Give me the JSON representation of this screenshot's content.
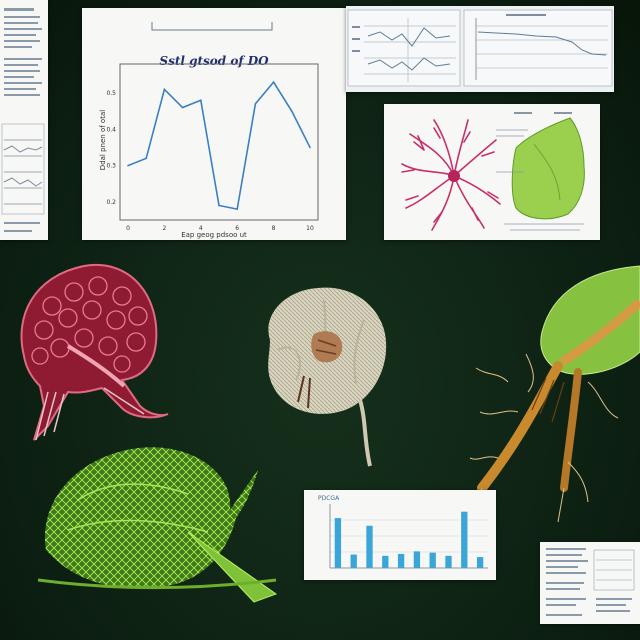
{
  "colors": {
    "background": "#0f2415",
    "line": "#3b7fc4",
    "bar": "#3aa5d8",
    "fern": "#8fd63a",
    "crimson": "#b0243e",
    "pink": "#d4376e",
    "leaf": "#9bd04e",
    "amber": "#c98a2e"
  },
  "main_plot": {
    "title": "Sstl gtsod of DO",
    "ylabel": "Ddal pnen of otal",
    "xlabel": "Eap geog pdsoo ut",
    "chart_data": {
      "type": "line",
      "x": [
        1,
        2,
        3,
        4,
        5,
        6,
        7,
        8,
        9,
        10,
        11
      ],
      "values": [
        0.3,
        0.32,
        0.51,
        0.46,
        0.48,
        0.19,
        0.18,
        0.47,
        0.53,
        0.45,
        0.35
      ],
      "ylim": [
        0.15,
        0.58
      ],
      "x_ticks": [
        "0",
        "2",
        "4",
        "6",
        "8",
        "10"
      ],
      "y_ticks": [
        "0.2",
        "0.3",
        "0.4",
        "0.5"
      ],
      "grid": false
    }
  },
  "bar_panel": {
    "title": "PDCGA",
    "chart_data": {
      "type": "bar",
      "values": [
        0.78,
        0.21,
        0.66,
        0.19,
        0.22,
        0.26,
        0.24,
        0.19,
        0.88,
        0.17
      ],
      "ylim": [
        0,
        1
      ],
      "grid": true
    }
  },
  "icons": [
    "document-icon",
    "small-chart-icon",
    "specimen-icon"
  ]
}
